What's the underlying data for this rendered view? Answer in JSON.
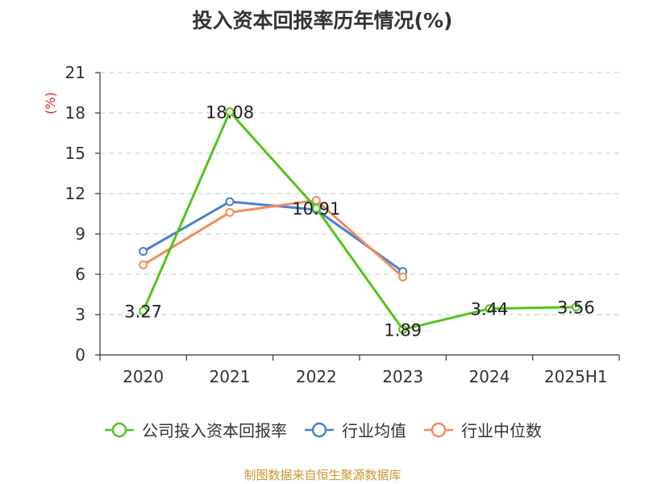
{
  "page": {
    "title": "投入资本回报率历年情况(%)",
    "source": "制图数据来自恒生聚源数据库"
  },
  "colors": {
    "company": "#52c41a",
    "industry_avg": "#4a7fd4",
    "industry_median": "#f58b5a",
    "unit_label": "#e0201d",
    "source": "#c8962e"
  },
  "chart_data": {
    "type": "line",
    "title": "投入资本回报率历年情况(%)",
    "ylabel": "(%)",
    "categories": [
      "2020",
      "2021",
      "2022",
      "2023",
      "2024",
      "2025H1"
    ],
    "ylim": [
      0,
      21
    ],
    "yticks": [
      "0",
      "3",
      "6",
      "9",
      "12",
      "15",
      "18",
      "21"
    ],
    "grid": true,
    "legend_position": "bottom",
    "series": [
      {
        "name": "公司投入资本回报率",
        "color_key": "company",
        "values": [
          3.27,
          18.08,
          10.91,
          1.89,
          3.44,
          3.56
        ],
        "labels": [
          "3.27",
          "18.08",
          "10.91",
          "1.89",
          "3.44",
          "3.56"
        ]
      },
      {
        "name": "行业均值",
        "color_key": "industry_avg",
        "values": [
          7.7,
          11.4,
          10.8,
          6.2,
          null,
          null
        ]
      },
      {
        "name": "行业中位数",
        "color_key": "industry_median",
        "values": [
          6.7,
          10.6,
          11.5,
          5.8,
          null,
          null
        ]
      }
    ]
  }
}
